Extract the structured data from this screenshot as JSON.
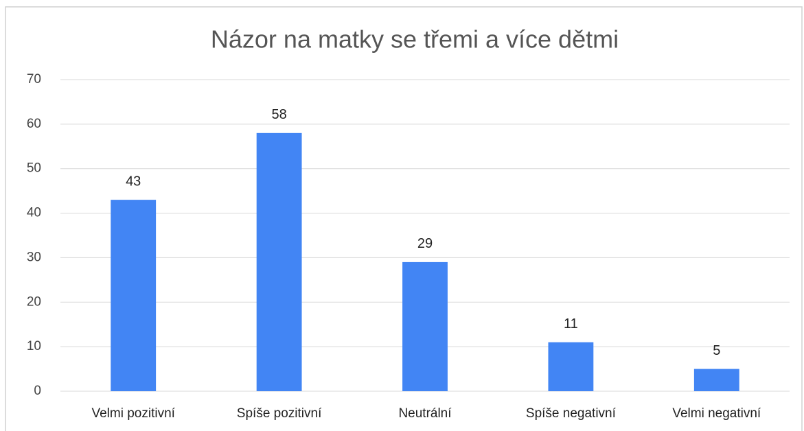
{
  "chart_data": {
    "type": "bar",
    "title": "Názor na matky se třemi a více dětmi",
    "categories": [
      "Velmi pozitivní",
      "Spíše pozitivní",
      "Neutrální",
      "Spíše negativní",
      "Velmi negativní"
    ],
    "values": [
      43,
      58,
      29,
      11,
      5
    ],
    "color": "#4285f4",
    "ylim": [
      0,
      70
    ],
    "yticks": [
      0,
      10,
      20,
      30,
      40,
      50,
      60,
      70
    ],
    "grid": true
  }
}
